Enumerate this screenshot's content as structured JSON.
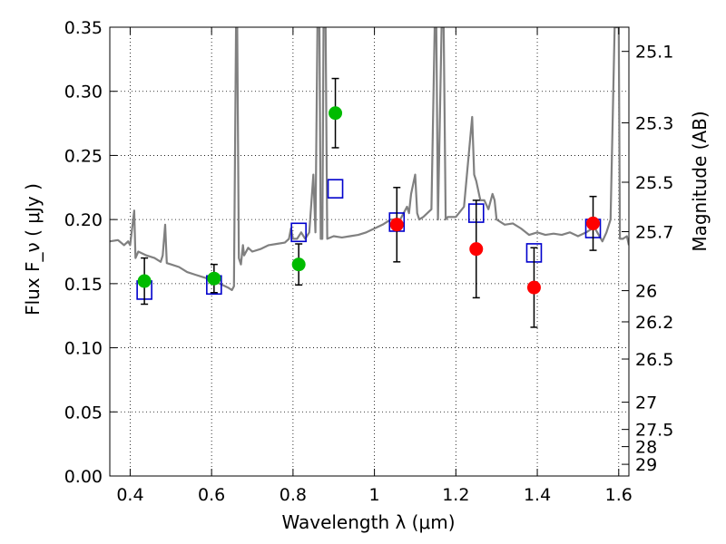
{
  "chart_data": {
    "type": "scatter",
    "xlabel": "Wavelength  λ (μm)",
    "ylabel": "Flux  F_ν  ( μJy )",
    "ylabel_right": "Magnitude (AB)",
    "xlim": [
      0.35,
      1.625
    ],
    "ylim": [
      0.0,
      0.35
    ],
    "grid": true,
    "x_ticks": [
      0.4,
      0.6,
      0.8,
      1.0,
      1.2,
      1.4,
      1.6
    ],
    "x_tick_labels": [
      "0.4",
      "0.6",
      "0.8",
      "1",
      "1.2",
      "1.4",
      "1.6"
    ],
    "y_ticks": [
      0.0,
      0.05,
      0.1,
      0.15,
      0.2,
      0.25,
      0.3,
      0.35
    ],
    "y_tick_labels": [
      "0.00",
      "0.05",
      "0.10",
      "0.15",
      "0.20",
      "0.25",
      "0.30",
      "0.35"
    ],
    "right_ticks": [
      {
        "mag": 25.1,
        "label": "25.1"
      },
      {
        "mag": 25.3,
        "label": "25.3"
      },
      {
        "mag": 25.5,
        "label": "25.5"
      },
      {
        "mag": 25.7,
        "label": "25.7"
      },
      {
        "mag": 26.0,
        "label": "26"
      },
      {
        "mag": 26.2,
        "label": "26.2"
      },
      {
        "mag": 26.5,
        "label": "26.5"
      },
      {
        "mag": 27.0,
        "label": "27"
      },
      {
        "mag": 27.5,
        "label": "27.5"
      },
      {
        "mag": 28.0,
        "label": "28"
      },
      {
        "mag": 29.0,
        "label": "29"
      }
    ],
    "colors": {
      "model": "#808080",
      "green": "#00bb00",
      "red": "#ff0000",
      "square": "#0000cc",
      "errorbar": "#000000"
    },
    "series": [
      {
        "marker": "circle-green",
        "points": [
          {
            "x": 0.435,
            "y": 0.152,
            "err": 0.018
          },
          {
            "x": 0.606,
            "y": 0.154,
            "err": 0.011
          },
          {
            "x": 0.814,
            "y": 0.165,
            "err": 0.016
          },
          {
            "x": 0.904,
            "y": 0.283,
            "err": 0.027
          }
        ]
      },
      {
        "marker": "circle-red",
        "points": [
          {
            "x": 1.055,
            "y": 0.196,
            "err": 0.029
          },
          {
            "x": 1.25,
            "y": 0.177,
            "err": 0.038
          },
          {
            "x": 1.392,
            "y": 0.147,
            "err": 0.031
          },
          {
            "x": 1.537,
            "y": 0.197,
            "err": 0.021
          }
        ]
      },
      {
        "marker": "square-blue",
        "points": [
          {
            "x": 0.435,
            "y": 0.145
          },
          {
            "x": 0.606,
            "y": 0.149
          },
          {
            "x": 0.814,
            "y": 0.19
          },
          {
            "x": 0.904,
            "y": 0.224
          },
          {
            "x": 1.055,
            "y": 0.198
          },
          {
            "x": 1.25,
            "y": 0.205
          },
          {
            "x": 1.392,
            "y": 0.174
          },
          {
            "x": 1.537,
            "y": 0.193
          }
        ]
      },
      {
        "marker": "line-model",
        "points": [
          [
            0.35,
            0.183
          ],
          [
            0.37,
            0.184
          ],
          [
            0.385,
            0.18
          ],
          [
            0.395,
            0.183
          ],
          [
            0.4,
            0.18
          ],
          [
            0.41,
            0.207
          ],
          [
            0.413,
            0.17
          ],
          [
            0.42,
            0.175
          ],
          [
            0.44,
            0.172
          ],
          [
            0.46,
            0.17
          ],
          [
            0.475,
            0.167
          ],
          [
            0.48,
            0.172
          ],
          [
            0.486,
            0.196
          ],
          [
            0.49,
            0.166
          ],
          [
            0.5,
            0.165
          ],
          [
            0.52,
            0.163
          ],
          [
            0.54,
            0.159
          ],
          [
            0.56,
            0.157
          ],
          [
            0.58,
            0.155
          ],
          [
            0.6,
            0.153
          ],
          [
            0.62,
            0.15
          ],
          [
            0.64,
            0.147
          ],
          [
            0.65,
            0.145
          ],
          [
            0.655,
            0.148
          ],
          [
            0.66,
            0.35
          ],
          [
            0.663,
            0.35
          ],
          [
            0.667,
            0.17
          ],
          [
            0.672,
            0.165
          ],
          [
            0.677,
            0.18
          ],
          [
            0.68,
            0.172
          ],
          [
            0.69,
            0.178
          ],
          [
            0.7,
            0.175
          ],
          [
            0.72,
            0.177
          ],
          [
            0.74,
            0.18
          ],
          [
            0.76,
            0.181
          ],
          [
            0.78,
            0.182
          ],
          [
            0.79,
            0.185
          ],
          [
            0.795,
            0.193
          ],
          [
            0.8,
            0.185
          ],
          [
            0.81,
            0.185
          ],
          [
            0.82,
            0.19
          ],
          [
            0.83,
            0.185
          ],
          [
            0.84,
            0.19
          ],
          [
            0.85,
            0.235
          ],
          [
            0.855,
            0.19
          ],
          [
            0.86,
            0.35
          ],
          [
            0.865,
            0.35
          ],
          [
            0.868,
            0.185
          ],
          [
            0.872,
            0.185
          ],
          [
            0.875,
            0.35
          ],
          [
            0.88,
            0.35
          ],
          [
            0.884,
            0.185
          ],
          [
            0.9,
            0.187
          ],
          [
            0.92,
            0.186
          ],
          [
            0.94,
            0.187
          ],
          [
            0.96,
            0.188
          ],
          [
            0.98,
            0.19
          ],
          [
            1.0,
            0.193
          ],
          [
            1.02,
            0.196
          ],
          [
            1.04,
            0.2
          ],
          [
            1.05,
            0.2
          ],
          [
            1.06,
            0.198
          ],
          [
            1.08,
            0.21
          ],
          [
            1.085,
            0.205
          ],
          [
            1.09,
            0.22
          ],
          [
            1.1,
            0.235
          ],
          [
            1.105,
            0.205
          ],
          [
            1.11,
            0.2
          ],
          [
            1.12,
            0.202
          ],
          [
            1.13,
            0.205
          ],
          [
            1.14,
            0.208
          ],
          [
            1.148,
            0.35
          ],
          [
            1.152,
            0.35
          ],
          [
            1.156,
            0.2
          ],
          [
            1.165,
            0.35
          ],
          [
            1.17,
            0.35
          ],
          [
            1.175,
            0.2
          ],
          [
            1.18,
            0.202
          ],
          [
            1.2,
            0.202
          ],
          [
            1.22,
            0.21
          ],
          [
            1.24,
            0.28
          ],
          [
            1.245,
            0.235
          ],
          [
            1.25,
            0.23
          ],
          [
            1.26,
            0.215
          ],
          [
            1.27,
            0.215
          ],
          [
            1.28,
            0.208
          ],
          [
            1.29,
            0.22
          ],
          [
            1.295,
            0.215
          ],
          [
            1.3,
            0.2
          ],
          [
            1.32,
            0.196
          ],
          [
            1.34,
            0.197
          ],
          [
            1.36,
            0.193
          ],
          [
            1.38,
            0.188
          ],
          [
            1.4,
            0.19
          ],
          [
            1.42,
            0.188
          ],
          [
            1.44,
            0.189
          ],
          [
            1.46,
            0.188
          ],
          [
            1.48,
            0.19
          ],
          [
            1.5,
            0.187
          ],
          [
            1.52,
            0.19
          ],
          [
            1.54,
            0.194
          ],
          [
            1.56,
            0.183
          ],
          [
            1.57,
            0.19
          ],
          [
            1.58,
            0.2
          ],
          [
            1.59,
            0.35
          ],
          [
            1.6,
            0.35
          ],
          [
            1.603,
            0.185
          ],
          [
            1.61,
            0.185
          ],
          [
            1.62,
            0.187
          ],
          [
            1.625,
            0.18
          ]
        ]
      }
    ]
  }
}
